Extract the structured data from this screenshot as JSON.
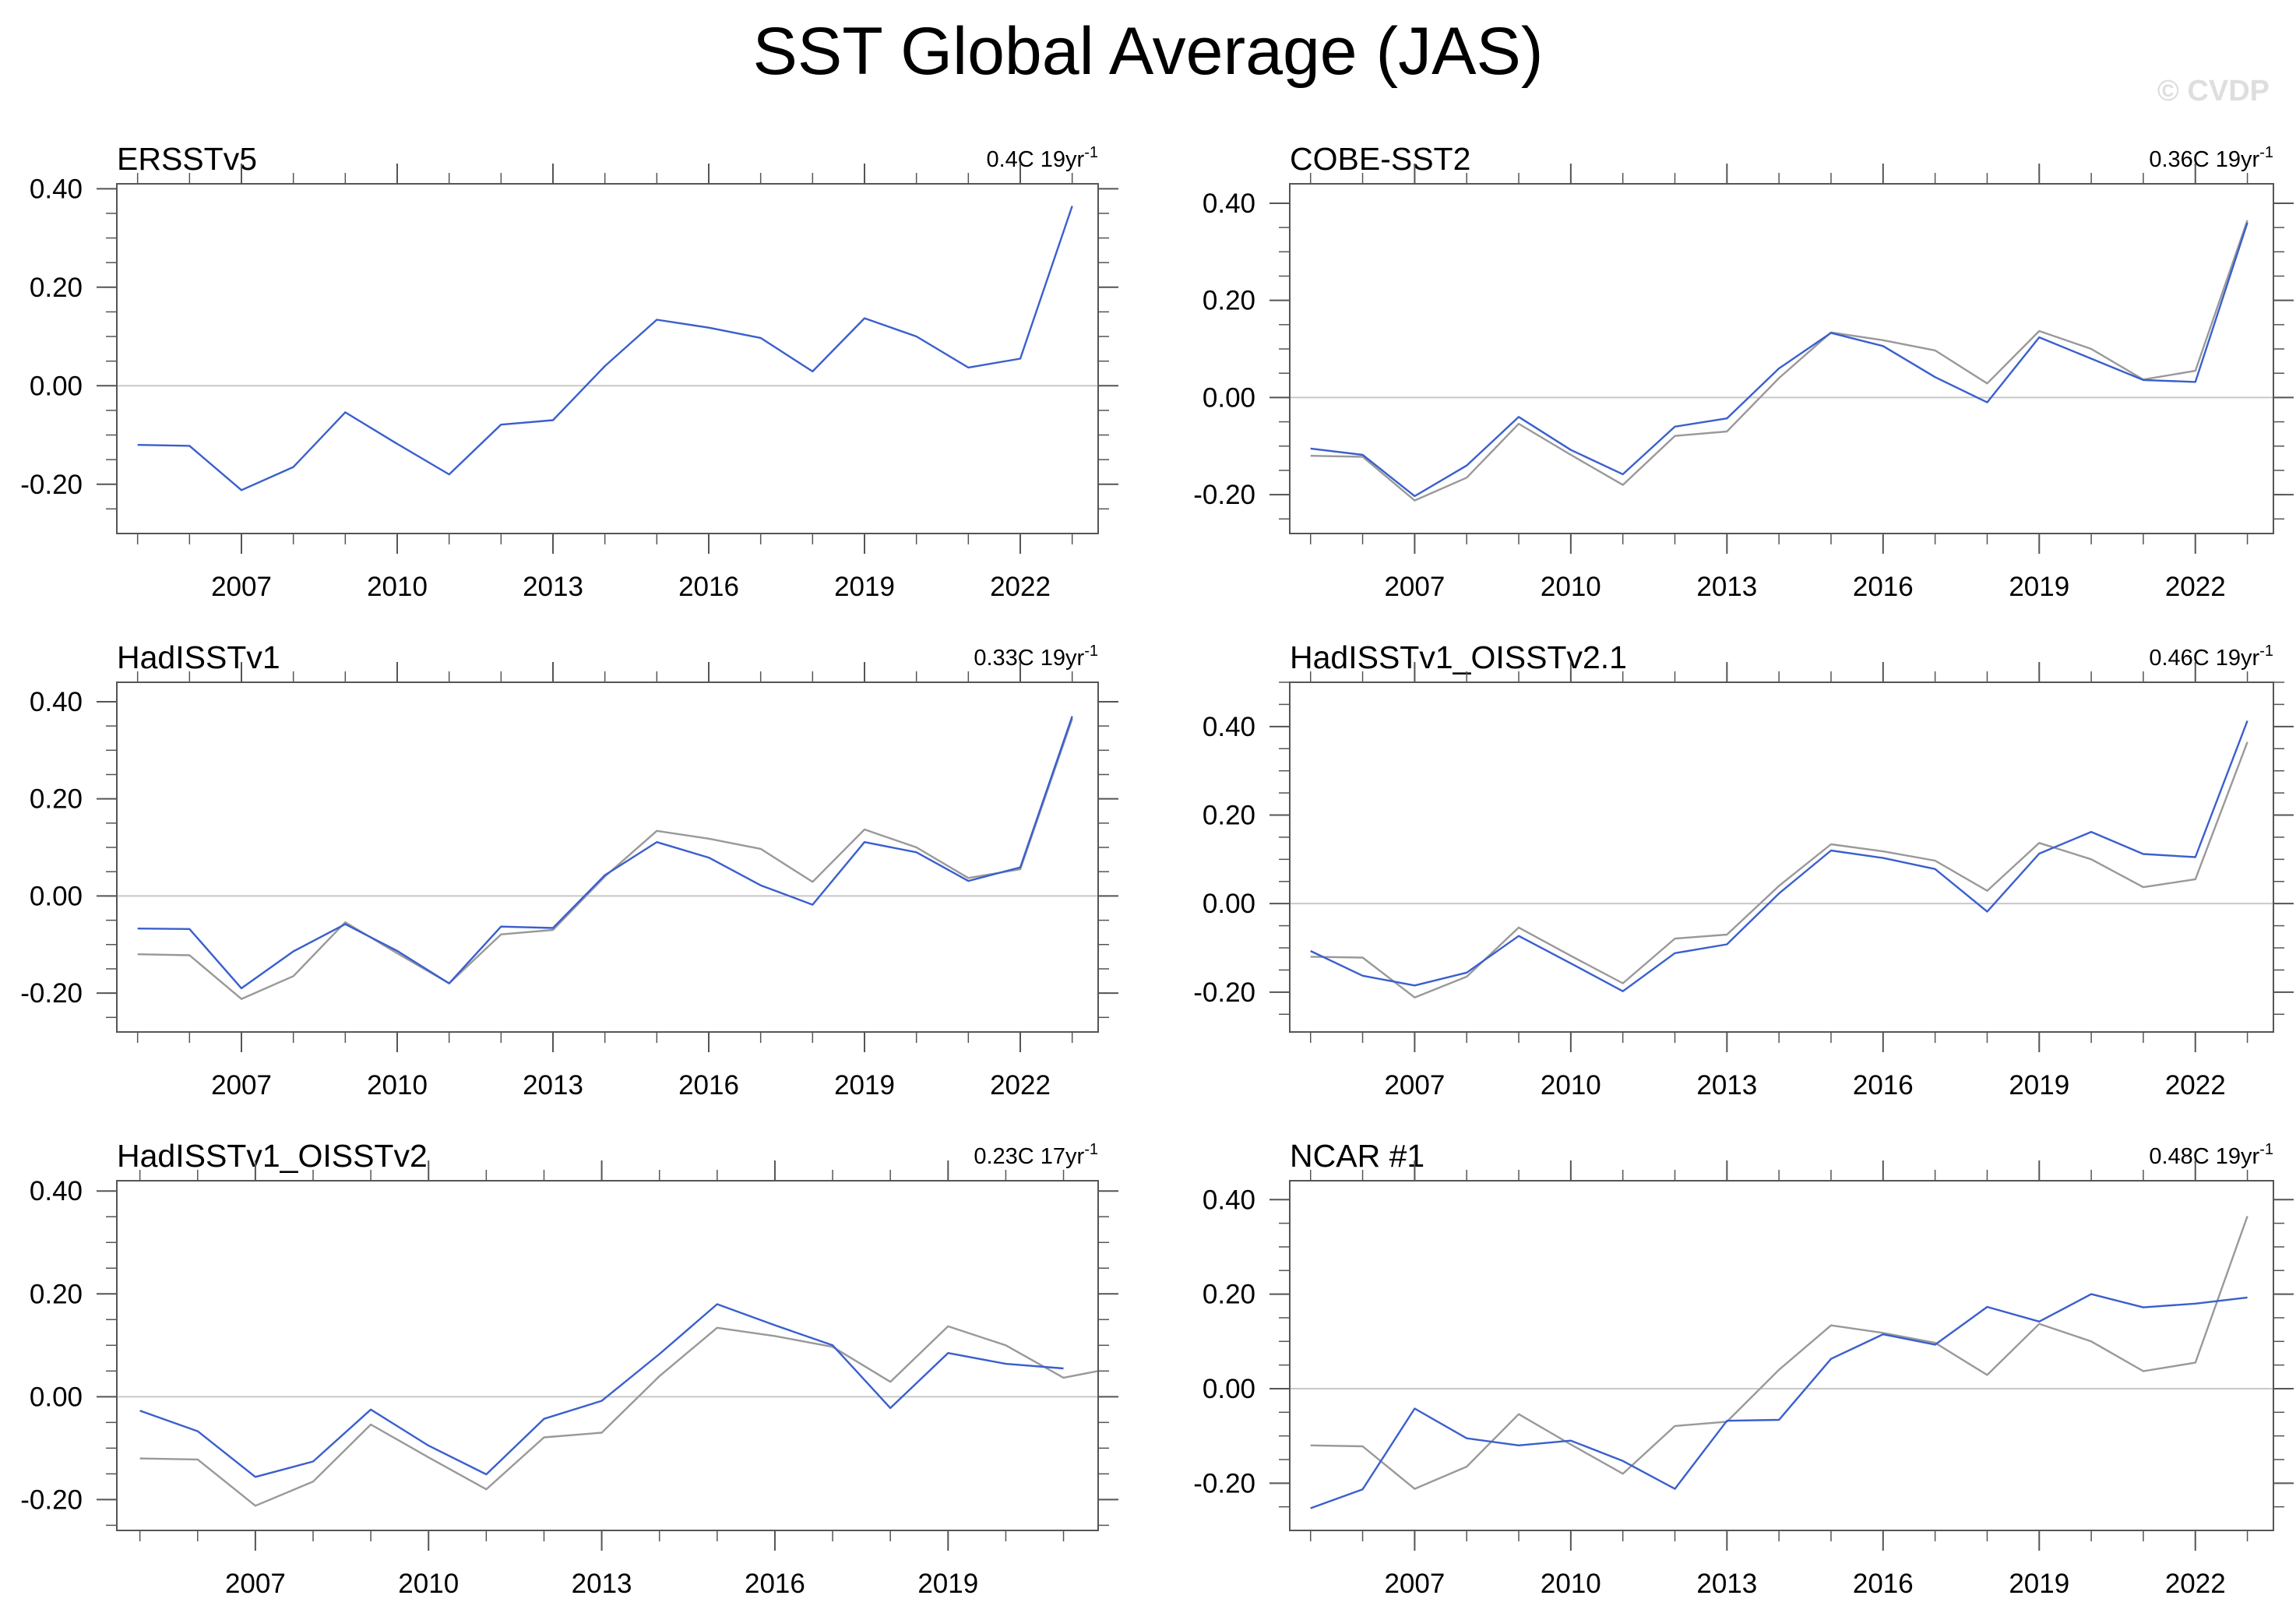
{
  "title": "SST Global Average (JAS)",
  "watermark": "© CVDP",
  "colors": {
    "observed": "#3a5fcd",
    "reference": "#999999",
    "zero_line": "#c8c8c8",
    "frame": "#555555"
  },
  "chart_data": [
    {
      "type": "line",
      "title": "ERSSTv5",
      "trend_value": "0.4C 19yr",
      "trend_exponent": "-1",
      "xlabel": "",
      "ylabel": "",
      "xlim": [
        2004.6,
        2023.5
      ],
      "ylim": [
        -0.3,
        0.41
      ],
      "xticks": [
        2007,
        2010,
        2013,
        2016,
        2019,
        2022
      ],
      "yticks": [
        0.4,
        0.2,
        0.0,
        -0.2
      ],
      "ytick_labels": [
        "0.40",
        "0.20",
        "0.00",
        "-0.20"
      ],
      "x": [
        2005,
        2006,
        2007,
        2008,
        2009,
        2010,
        2011,
        2012,
        2013,
        2014,
        2015,
        2016,
        2017,
        2018,
        2019,
        2020,
        2021,
        2022,
        2023
      ],
      "series": [
        {
          "role": "observed",
          "values": [
            -0.12,
            -0.122,
            -0.212,
            -0.165,
            -0.054,
            -0.118,
            -0.18,
            -0.079,
            -0.07,
            0.04,
            0.134,
            0.118,
            0.097,
            0.029,
            0.137,
            0.1,
            0.037,
            0.055,
            0.365
          ]
        }
      ]
    },
    {
      "type": "line",
      "title": "COBE-SST2",
      "trend_value": "0.36C 19yr",
      "trend_exponent": "-1",
      "xlabel": "",
      "ylabel": "",
      "xlim": [
        2004.6,
        2023.5
      ],
      "ylim": [
        -0.28,
        0.44
      ],
      "xticks": [
        2007,
        2010,
        2013,
        2016,
        2019,
        2022
      ],
      "yticks": [
        0.4,
        0.2,
        0.0,
        -0.2
      ],
      "ytick_labels": [
        "0.40",
        "0.20",
        "0.00",
        "-0.20"
      ],
      "x": [
        2005,
        2006,
        2007,
        2008,
        2009,
        2010,
        2011,
        2012,
        2013,
        2014,
        2015,
        2016,
        2017,
        2018,
        2019,
        2020,
        2021,
        2022,
        2023
      ],
      "series": [
        {
          "role": "reference",
          "values": [
            -0.12,
            -0.122,
            -0.212,
            -0.165,
            -0.054,
            -0.118,
            -0.18,
            -0.079,
            -0.07,
            0.04,
            0.134,
            0.118,
            0.097,
            0.029,
            0.137,
            0.1,
            0.037,
            0.055,
            0.365
          ]
        },
        {
          "role": "observed",
          "values": [
            -0.105,
            -0.118,
            -0.203,
            -0.14,
            -0.04,
            -0.108,
            -0.158,
            -0.06,
            -0.043,
            0.06,
            0.133,
            0.106,
            0.042,
            -0.01,
            0.124,
            0.08,
            0.036,
            0.032,
            0.36
          ]
        }
      ]
    },
    {
      "type": "line",
      "title": "HadISSTv1",
      "trend_value": "0.33C 19yr",
      "trend_exponent": "-1",
      "xlabel": "",
      "ylabel": "",
      "xlim": [
        2004.6,
        2023.5
      ],
      "ylim": [
        -0.28,
        0.44
      ],
      "xticks": [
        2007,
        2010,
        2013,
        2016,
        2019,
        2022
      ],
      "yticks": [
        0.4,
        0.2,
        0.0,
        -0.2
      ],
      "ytick_labels": [
        "0.40",
        "0.20",
        "0.00",
        "-0.20"
      ],
      "x": [
        2005,
        2006,
        2007,
        2008,
        2009,
        2010,
        2011,
        2012,
        2013,
        2014,
        2015,
        2016,
        2017,
        2018,
        2019,
        2020,
        2021,
        2022,
        2023
      ],
      "series": [
        {
          "role": "reference",
          "values": [
            -0.12,
            -0.122,
            -0.212,
            -0.165,
            -0.054,
            -0.118,
            -0.18,
            -0.079,
            -0.07,
            0.04,
            0.134,
            0.118,
            0.097,
            0.029,
            0.137,
            0.1,
            0.037,
            0.055,
            0.365
          ]
        },
        {
          "role": "observed",
          "values": [
            -0.067,
            -0.068,
            -0.19,
            -0.114,
            -0.058,
            -0.113,
            -0.18,
            -0.063,
            -0.066,
            0.043,
            0.111,
            0.079,
            0.022,
            -0.018,
            0.111,
            0.09,
            0.031,
            0.059,
            0.37
          ]
        }
      ]
    },
    {
      "type": "line",
      "title": "HadISSTv1_OISSTv2.1",
      "trend_value": "0.46C 19yr",
      "trend_exponent": "-1",
      "xlabel": "",
      "ylabel": "",
      "xlim": [
        2004.6,
        2023.5
      ],
      "ylim": [
        -0.29,
        0.5
      ],
      "xticks": [
        2007,
        2010,
        2013,
        2016,
        2019,
        2022
      ],
      "yticks": [
        0.4,
        0.2,
        0.0,
        -0.2
      ],
      "ytick_labels": [
        "0.40",
        "0.20",
        "0.00",
        "-0.20"
      ],
      "x": [
        2005,
        2006,
        2007,
        2008,
        2009,
        2010,
        2011,
        2012,
        2013,
        2014,
        2015,
        2016,
        2017,
        2018,
        2019,
        2020,
        2021,
        2022,
        2023
      ],
      "series": [
        {
          "role": "reference",
          "values": [
            -0.12,
            -0.122,
            -0.212,
            -0.165,
            -0.054,
            -0.118,
            -0.18,
            -0.079,
            -0.07,
            0.04,
            0.134,
            0.118,
            0.097,
            0.029,
            0.137,
            0.1,
            0.037,
            0.055,
            0.365
          ]
        },
        {
          "role": "observed",
          "values": [
            -0.107,
            -0.163,
            -0.185,
            -0.156,
            -0.073,
            -0.135,
            -0.198,
            -0.112,
            -0.092,
            0.023,
            0.12,
            0.103,
            0.078,
            -0.018,
            0.113,
            0.162,
            0.112,
            0.105,
            0.413
          ]
        }
      ]
    },
    {
      "type": "line",
      "title": "HadISSTv1_OISSTv2",
      "trend_value": "0.23C 17yr",
      "trend_exponent": "-1",
      "xlabel": "",
      "ylabel": "",
      "xlim": [
        2004.6,
        2021.6
      ],
      "ylim": [
        -0.26,
        0.42
      ],
      "xticks": [
        2007,
        2010,
        2013,
        2016,
        2019
      ],
      "yticks": [
        0.4,
        0.2,
        0.0,
        -0.2
      ],
      "ytick_labels": [
        "0.40",
        "0.20",
        "0.00",
        "-0.20"
      ],
      "x": [
        2005,
        2006,
        2007,
        2008,
        2009,
        2010,
        2011,
        2012,
        2013,
        2014,
        2015,
        2016,
        2017,
        2018,
        2019,
        2020,
        2021
      ],
      "series": [
        {
          "role": "reference",
          "x": [
            2005,
            2006,
            2007,
            2008,
            2009,
            2010,
            2011,
            2012,
            2013,
            2014,
            2015,
            2016,
            2017,
            2018,
            2019,
            2020,
            2021,
            2021.6
          ],
          "values": [
            -0.12,
            -0.122,
            -0.212,
            -0.165,
            -0.054,
            -0.118,
            -0.18,
            -0.079,
            -0.07,
            0.04,
            0.134,
            0.118,
            0.097,
            0.029,
            0.137,
            0.1,
            0.037,
            0.05
          ]
        },
        {
          "role": "observed",
          "values": [
            -0.027,
            -0.067,
            -0.156,
            -0.126,
            -0.025,
            -0.095,
            -0.151,
            -0.043,
            -0.008,
            0.083,
            0.18,
            0.139,
            0.1,
            -0.022,
            0.085,
            0.064,
            0.055
          ]
        }
      ]
    },
    {
      "type": "line",
      "title": "NCAR #1",
      "trend_value": "0.48C 19yr",
      "trend_exponent": "-1",
      "xlabel": "",
      "ylabel": "",
      "xlim": [
        2004.6,
        2023.5
      ],
      "ylim": [
        -0.3,
        0.44
      ],
      "xticks": [
        2007,
        2010,
        2013,
        2016,
        2019,
        2022
      ],
      "yticks": [
        0.4,
        0.2,
        0.0,
        -0.2
      ],
      "ytick_labels": [
        "0.40",
        "0.20",
        "0.00",
        "-0.20"
      ],
      "x": [
        2005,
        2006,
        2007,
        2008,
        2009,
        2010,
        2011,
        2012,
        2013,
        2014,
        2015,
        2016,
        2017,
        2018,
        2019,
        2020,
        2021,
        2022,
        2023
      ],
      "series": [
        {
          "role": "reference",
          "values": [
            -0.12,
            -0.122,
            -0.212,
            -0.165,
            -0.054,
            -0.118,
            -0.18,
            -0.079,
            -0.07,
            0.04,
            0.134,
            0.118,
            0.097,
            0.029,
            0.137,
            0.1,
            0.037,
            0.055,
            0.365
          ]
        },
        {
          "role": "observed",
          "values": [
            -0.253,
            -0.213,
            -0.042,
            -0.105,
            -0.12,
            -0.11,
            -0.153,
            -0.212,
            -0.068,
            -0.066,
            0.063,
            0.115,
            0.093,
            0.173,
            0.142,
            0.2,
            0.172,
            0.18,
            0.193
          ]
        }
      ]
    }
  ]
}
